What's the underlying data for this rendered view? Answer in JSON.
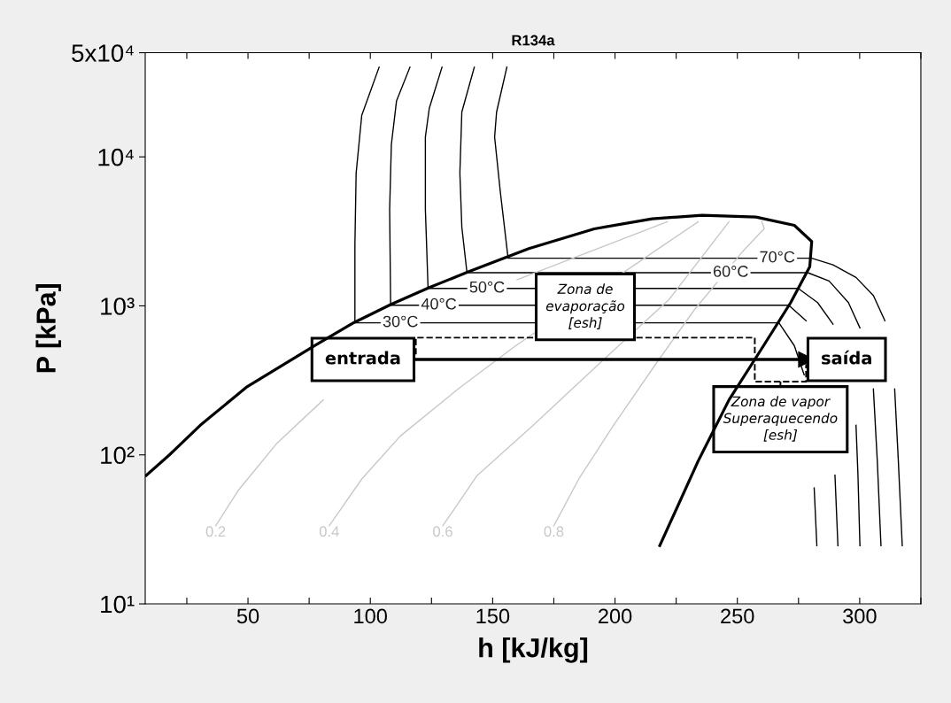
{
  "chart_data": {
    "type": "line",
    "title": "R134a",
    "xlabel": "h [kJ/kg]",
    "ylabel": "P [kPa]",
    "log": "y",
    "xlim": [
      8,
      325
    ],
    "ylim": [
      10,
      50000
    ],
    "xticks": [
      {
        "value": 25,
        "label": null
      },
      50,
      {
        "value": 75,
        "label": null
      },
      100,
      {
        "value": 125,
        "label": null
      },
      150,
      {
        "value": 175,
        "label": null
      },
      200,
      {
        "value": 225,
        "label": null
      },
      250,
      {
        "value": 275,
        "label": null
      },
      300,
      {
        "value": 325,
        "label": null
      }
    ],
    "yticks": [
      {
        "value": 10,
        "label": "10¹"
      },
      {
        "value": 100,
        "label": "10²"
      },
      {
        "value": 1000,
        "label": "10³"
      },
      {
        "value": 10000,
        "label": "10⁴"
      },
      {
        "value": 50000,
        "label": "5x10⁴"
      }
    ],
    "grid": false,
    "legend": false,
    "marker": "none",
    "line_style": "solid",
    "series": [
      {
        "color": "#000000",
        "x": [
          8.4,
          17.9,
          30.5,
          49.3,
          77.7,
          93.4,
          108.3,
          124.1,
          139.8,
          156.3,
          164.8,
          191.5,
          215.2,
          235.6,
          257.6,
          273.3,
          280.4,
          279.6,
          271.8,
          260.7,
          246.6,
          234,
          218.3
        ],
        "values": [
          72.8,
          100,
          158,
          284,
          546,
          774,
          1021,
          1327,
          1686,
          2143,
          2421,
          3289,
          3841,
          4057,
          3945,
          3473,
          2706,
          1834,
          1052,
          540,
          234,
          91,
          24.6
        ]
      },
      {
        "color": "#000000",
        "x": [
          103.6,
          96.5,
          94.2,
          93.7,
          93.7,
          267.0,
          273.3,
          277.3,
          279.3,
          281.4,
          282.5
        ],
        "values": [
          40000,
          19000,
          7780,
          2560,
          770,
          770,
          540,
          345,
          null,
          60,
          24.6
        ]
      },
      {
        "color": "#000000",
        "x": [
          116.2,
          110.7,
          108.6,
          107.9,
          108.3,
          271.0,
          278.1,
          284.4,
          286.7,
          288.3,
          289.9,
          291.1
        ],
        "values": [
          40000,
          23700,
          12100,
          4460,
          1010,
          1010,
          795,
          null,
          null,
          null,
          73,
          24.6
        ]
      },
      {
        "color": "#000000",
        "x": [
          129.3,
          124.1,
          122.5,
          122.5,
          123.6,
          274.9,
          282.8,
          289.1,
          293,
          295.4,
          298.5,
          299.3,
          300.1
        ],
        "values": [
          40000,
          21200,
          13600,
          4460,
          1310,
          1310,
          1052,
          753,
          null,
          null,
          158,
          73,
          24.6
        ]
      },
      {
        "color": "#000000",
        "x": [
          142.5,
          137.4,
          136.6,
          137.4,
          139.5,
          278.8,
          287.5,
          295.4,
          300.1,
          303.2,
          305.6,
          307.2,
          308.7
        ],
        "values": [
          40000,
          20000,
          7780,
          3380,
          1670,
          1670,
          1468,
          1052,
          711,
          null,
          277,
          91,
          24.6
        ]
      },
      {
        "color": "#000000",
        "x": [
          155.8,
          151.6,
          150.8,
          153.1,
          156.3,
          280.4,
          289.1,
          298.5,
          305.6,
          310.3,
          311.9,
          314.3,
          315.8,
          317.4
        ],
        "values": [
          40000,
          20000,
          13600,
          5890,
          2090,
          2090,
          1884,
          1551,
          1175,
          795,
          null,
          277,
          91,
          24.6
        ]
      },
      {
        "name": "0.2",
        "color": "#c8c8c8",
        "x": [
          36.8,
          46.2,
          61.9,
          80.8,
          104.4,
          160,
          221.4
        ],
        "values": [
          33.4,
          58.3,
          120,
          234,
          null,
          1500,
          3670
        ]
      },
      {
        "name": "0.4",
        "color": "#c8c8c8",
        "x": [
          83.2,
          96.5,
          112.3,
          135.9,
          159.4,
          222,
          234
        ],
        "values": [
          33.4,
          68.9,
          134,
          277,
          540,
          2700,
          3670
        ]
      },
      {
        "name": "0.6",
        "color": "#c8c8c8",
        "x": [
          129.6,
          143.7,
          166,
          195,
          222,
          246.6
        ],
        "values": [
          33.4,
          72.8,
          155,
          431,
          1100,
          3670
        ]
      },
      {
        "name": "0.8",
        "color": "#c8c8c8",
        "x": [
          175,
          185.2,
          199.4,
          216.7,
          232.4,
          252,
          261,
          260
        ],
        "values": [
          33.4,
          68.9,
          158,
          408,
          940,
          2300,
          3300,
          3670
        ]
      },
      {
        "color": "#000000",
        "marker": "triangle",
        "x": [
          118.6,
          278.1
        ],
        "values": [
          437,
          437
        ]
      }
    ],
    "annotations": [
      "Zona de\nevaporação\n[esh]",
      "Zona de vapor\nSuperaquecendo\n[esh]",
      {
        "text": "30°C",
        "x": 112.3,
        "y": 770
      },
      {
        "text": "40°C",
        "x": 128,
        "y": 1010
      },
      {
        "text": "50°C",
        "x": 147.7,
        "y": 1310
      },
      {
        "text": "60°C",
        "x": 247.3,
        "y": 1670
      },
      {
        "text": "70°C",
        "x": 266.3,
        "y": 2090
      },
      {
        "text": "entrada",
        "x": 118.6,
        "y": 437
      },
      {
        "text": "saída",
        "x": 278.1,
        "y": 437
      }
    ]
  }
}
